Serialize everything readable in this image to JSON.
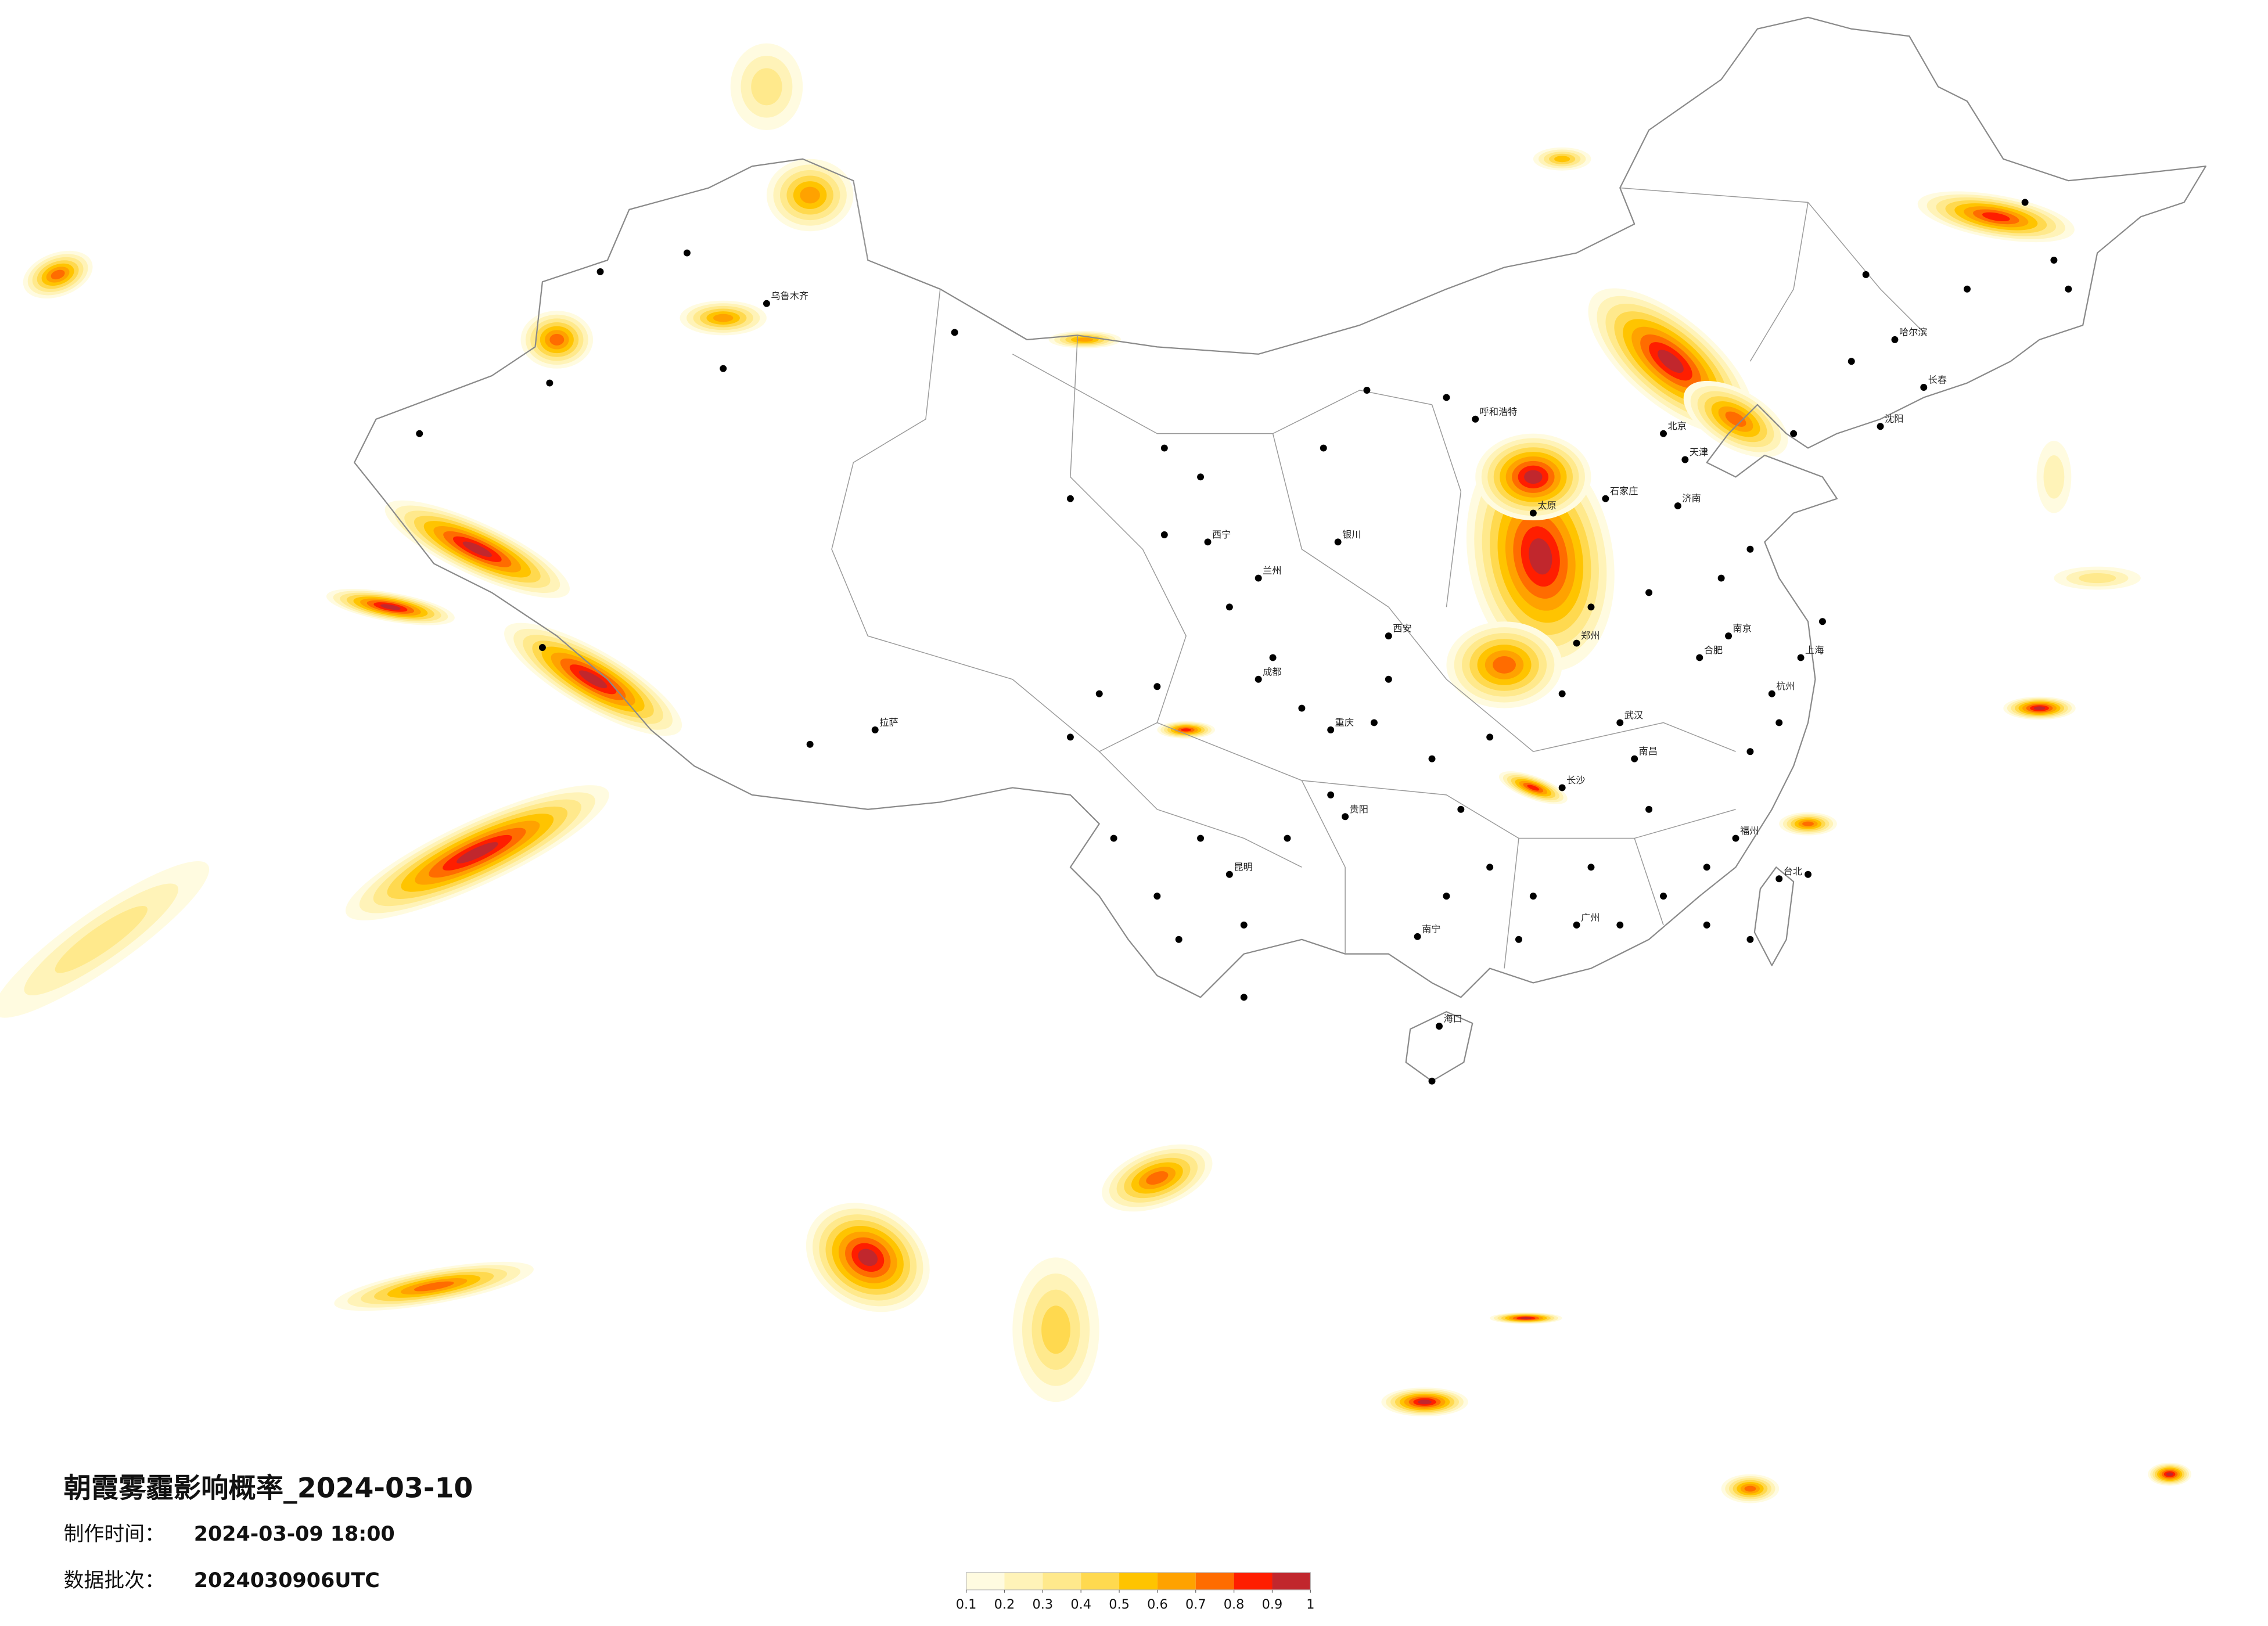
{
  "header": {
    "title": "朝霞雾霾影响概率_2024-03-10",
    "made_label": "制作时间：",
    "made_time": "2024-03-09 18:00",
    "batch_label": "数据批次：",
    "batch": "2024030906UTC"
  },
  "colorbar": {
    "ticks": [
      0.1,
      0.2,
      0.3,
      0.4,
      0.5,
      0.6,
      0.7,
      0.8,
      0.9,
      1
    ],
    "colors": [
      "#fffbe0",
      "#fff3b8",
      "#ffe98c",
      "#ffd94f",
      "#ffc400",
      "#ffa200",
      "#ff6c00",
      "#ff1e00",
      "#c1272d"
    ]
  },
  "cities": [
    "北京",
    "天津",
    "石家庄",
    "太原",
    "郑州",
    "济南",
    "武汉",
    "长沙",
    "广州",
    "南宁",
    "昆明",
    "贵阳",
    "重庆",
    "成都",
    "西安",
    "兰州",
    "西宁",
    "银川",
    "呼和浩特",
    "拉萨",
    "乌鲁木齐",
    "哈尔滨",
    "长春",
    "沈阳",
    "南京",
    "上海",
    "杭州",
    "合肥",
    "南昌",
    "福州",
    "海口",
    "台北"
  ]
}
